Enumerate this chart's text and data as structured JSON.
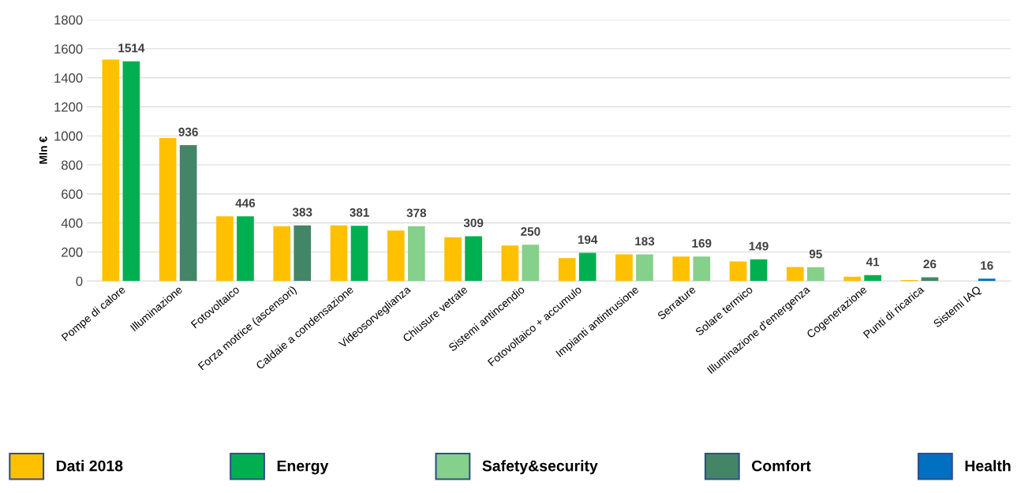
{
  "chart_data": {
    "type": "bar",
    "ylabel": "Mln €",
    "categories": [
      "Pompe di calore",
      "Illuminazione",
      "Fotovoltaico",
      "Forza motrice (ascensori)",
      "Caldaie a condensazione",
      "Videosorveglianza",
      "Chiusure vetrate",
      "Sistemi antincendio",
      "Fotovoltaico + accumulo",
      "Impianti antintrusione",
      "Serrature",
      "Solare termico",
      "Illuminazione d'emergenza",
      "Cogenerazione",
      "Punti di ricarica",
      "Sistemi IAQ"
    ],
    "series": [
      {
        "name": "Dati 2018",
        "color": "#ffc000",
        "values": [
          1525,
          985,
          446,
          378,
          383,
          348,
          301,
          245,
          157,
          183,
          169,
          135,
          97,
          30,
          7,
          null
        ]
      },
      {
        "name": "Energy",
        "color": "#00b050",
        "values": [
          1514,
          null,
          446,
          null,
          381,
          null,
          309,
          null,
          194,
          null,
          null,
          149,
          null,
          41,
          null,
          null
        ],
        "value_labels": [
          "1514",
          null,
          "446",
          null,
          "381",
          null,
          "309",
          null,
          "194",
          null,
          null,
          "149",
          null,
          "41",
          null,
          null
        ]
      },
      {
        "name": "Safety&security",
        "color": "#85d08a",
        "values": [
          null,
          null,
          null,
          null,
          null,
          378,
          null,
          250,
          null,
          183,
          169,
          null,
          95,
          null,
          null,
          null
        ],
        "value_labels": [
          null,
          null,
          null,
          null,
          null,
          "378",
          null,
          "250",
          null,
          "183",
          "169",
          null,
          "95",
          null,
          null,
          null
        ]
      },
      {
        "name": "Comfort",
        "color": "#448568",
        "values": [
          null,
          936,
          null,
          383,
          null,
          null,
          null,
          null,
          null,
          null,
          null,
          null,
          null,
          null,
          26,
          null
        ],
        "value_labels": [
          null,
          "936",
          null,
          "383",
          null,
          null,
          null,
          null,
          null,
          null,
          null,
          null,
          null,
          null,
          "26",
          null
        ]
      },
      {
        "name": "Health",
        "color": "#0070c0",
        "values": [
          null,
          null,
          null,
          null,
          null,
          null,
          null,
          null,
          null,
          null,
          null,
          null,
          null,
          null,
          null,
          16
        ],
        "value_labels": [
          null,
          null,
          null,
          null,
          null,
          null,
          null,
          null,
          null,
          null,
          null,
          null,
          null,
          null,
          null,
          "16"
        ]
      }
    ],
    "ylim": [
      0,
      1800
    ],
    "yticks": [
      0,
      200,
      400,
      600,
      800,
      1000,
      1200,
      1400,
      1600,
      1800
    ],
    "grid": "y",
    "legend": "bottom"
  }
}
